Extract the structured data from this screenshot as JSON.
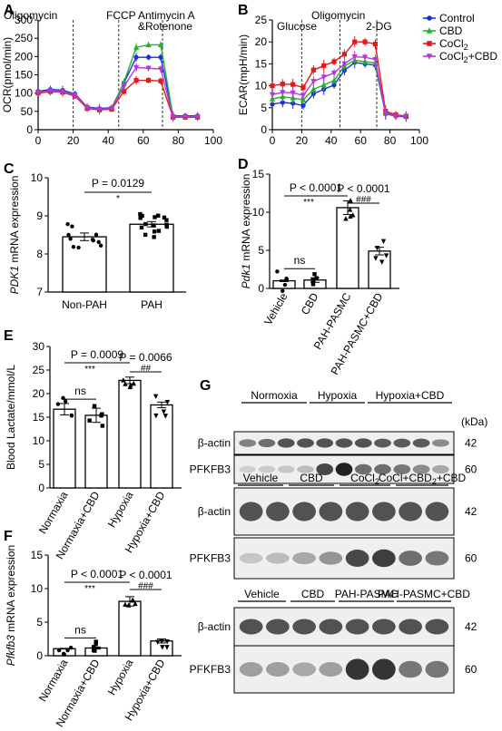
{
  "panels": {
    "A": "A",
    "B": "B",
    "C": "C",
    "D": "D",
    "E": "E",
    "F": "F",
    "G": "G"
  },
  "chart_data": [
    {
      "panel": "A",
      "type": "line",
      "ylabel": "OCR(pmol/min)",
      "xlim": [
        0,
        100
      ],
      "ylim": [
        0,
        300
      ],
      "xticks": [
        0,
        20,
        40,
        60,
        80,
        100
      ],
      "yticks": [
        0,
        50,
        100,
        150,
        200,
        250,
        300
      ],
      "injections": [
        {
          "x": 20,
          "label": "Oligomycin"
        },
        {
          "x": 46,
          "label": "FCCP"
        },
        {
          "x": 71,
          "label": "Antimycin A"
        },
        {
          "x": 71,
          "label": "&Rotenone"
        }
      ],
      "x": [
        0,
        7,
        14,
        21,
        28,
        35,
        42,
        49,
        56,
        63,
        70,
        77,
        84,
        91
      ],
      "series": [
        {
          "name": "Control",
          "color": "#1a2fe0",
          "marker": "circle",
          "values": [
            105,
            110,
            108,
            98,
            62,
            58,
            60,
            128,
            198,
            198,
            198,
            38,
            38,
            38
          ]
        },
        {
          "name": "CBD",
          "color": "#22b22e",
          "marker": "triangle",
          "values": [
            103,
            106,
            104,
            96,
            60,
            56,
            58,
            130,
            225,
            232,
            232,
            36,
            36,
            36
          ]
        },
        {
          "name": "CoCl2",
          "color": "#e01b1b",
          "marker": "square",
          "values": [
            100,
            104,
            102,
            92,
            58,
            54,
            56,
            105,
            135,
            135,
            133,
            34,
            34,
            34
          ]
        },
        {
          "name": "CoCl2+CBD",
          "color": "#b338d8",
          "marker": "triangle-down",
          "values": [
            102,
            106,
            104,
            94,
            60,
            56,
            58,
            118,
            170,
            168,
            166,
            35,
            35,
            35
          ]
        }
      ]
    },
    {
      "panel": "B",
      "type": "line",
      "ylabel": "ECAR(mpH/min)",
      "xlim": [
        0,
        100
      ],
      "ylim": [
        0,
        25
      ],
      "xticks": [
        0,
        20,
        40,
        60,
        80,
        100
      ],
      "yticks": [
        0,
        5,
        10,
        15,
        20,
        25
      ],
      "injections": [
        {
          "x": 20,
          "label": "Glucose"
        },
        {
          "x": 46,
          "label": "Oligomycin"
        },
        {
          "x": 71,
          "label": "2-DG"
        }
      ],
      "x": [
        0,
        7,
        14,
        21,
        28,
        35,
        42,
        49,
        56,
        63,
        70,
        77,
        84,
        91
      ],
      "series": [
        {
          "name": "Control",
          "color": "#1a2fe0",
          "marker": "circle",
          "values": [
            5.8,
            6.2,
            6.0,
            5.5,
            8.2,
            9.2,
            10.2,
            13.5,
            15.3,
            15.0,
            14.7,
            3.6,
            3.1,
            2.9
          ]
        },
        {
          "name": "CBD",
          "color": "#22b22e",
          "marker": "triangle",
          "values": [
            7.0,
            7.5,
            7.2,
            6.8,
            9.2,
            10.2,
            11.2,
            14.5,
            15.8,
            15.5,
            15.2,
            3.8,
            3.3,
            3.1
          ]
        },
        {
          "name": "CoCl2",
          "color": "#e01b1b",
          "marker": "square",
          "values": [
            10.0,
            10.4,
            10.3,
            9.6,
            13.6,
            14.6,
            15.5,
            17.2,
            20.0,
            20.0,
            19.5,
            4.2,
            3.4,
            3.1
          ]
        },
        {
          "name": "CoCl2+CBD",
          "color": "#b338d8",
          "marker": "triangle-down",
          "values": [
            8.0,
            8.5,
            8.4,
            7.8,
            11.0,
            12.0,
            12.9,
            15.0,
            16.6,
            16.5,
            16.0,
            3.8,
            3.1,
            3.1
          ]
        }
      ]
    },
    {
      "panel": "C",
      "type": "bar",
      "ylabel_gene": "PDK1",
      "ylabel_rest": " mRNA expression",
      "categories": [
        "Non-PAH",
        "PAH"
      ],
      "values": [
        8.45,
        8.78
      ],
      "errors": [
        0.1,
        0.07
      ],
      "ylim": [
        7,
        10
      ],
      "yticks": [
        7,
        8,
        9,
        10
      ],
      "comparisons": [
        {
          "from": 0,
          "to": 1,
          "text": "P = 0.0129",
          "stars": "*"
        }
      ]
    },
    {
      "panel": "D",
      "type": "bar",
      "ylabel_gene": "Pdk1",
      "ylabel_rest": " mRNA expression",
      "categories": [
        "Vehicle",
        "CBD",
        "PAH-PASMC",
        "PAH-PASMC+CBD"
      ],
      "values": [
        1.0,
        1.1,
        10.6,
        4.9
      ],
      "errors": [
        0.1,
        0.3,
        0.9,
        0.5
      ],
      "ylim": [
        0,
        15
      ],
      "yticks": [
        0,
        5,
        10,
        15
      ],
      "comparisons": [
        {
          "from": 0,
          "to": 1,
          "text": "ns",
          "stars": ""
        },
        {
          "from": 0,
          "to": 2,
          "text": "P < 0.0001",
          "stars": "***"
        },
        {
          "from": 2,
          "to": 3,
          "text": "P < 0.0001",
          "stars": "###"
        }
      ]
    },
    {
      "panel": "E",
      "type": "bar",
      "ylabel": "Blood Lactate/mmol/L",
      "categories": [
        "Normaxia",
        "Normaxia+CBD",
        "Hypoxia",
        "Hypoxia+CBD"
      ],
      "values": [
        16.7,
        15.4,
        22.8,
        17.6
      ],
      "errors": [
        1.2,
        1.5,
        0.7,
        0.6
      ],
      "ylim": [
        0,
        30
      ],
      "yticks": [
        0,
        5,
        10,
        15,
        20,
        25,
        30
      ],
      "comparisons": [
        {
          "from": 0,
          "to": 1,
          "text": "ns",
          "stars": ""
        },
        {
          "from": 0,
          "to": 2,
          "text": "P = 0.0009",
          "stars": "***"
        },
        {
          "from": 2,
          "to": 3,
          "text": "P = 0.0066",
          "stars": "##"
        }
      ]
    },
    {
      "panel": "F",
      "type": "bar",
      "ylabel_gene": "Pfkfb3",
      "ylabel_rest": " mRNA expression",
      "categories": [
        "Normaxia",
        "Normaxia+CBD",
        "Hypoxia",
        "Hypoxia+CBD"
      ],
      "values": [
        1.05,
        1.15,
        8.1,
        2.2
      ],
      "errors": [
        0.05,
        0.15,
        0.7,
        0.3
      ],
      "ylim": [
        0,
        15
      ],
      "yticks": [
        0,
        5,
        10,
        15
      ],
      "comparisons": [
        {
          "from": 0,
          "to": 1,
          "text": "ns",
          "stars": ""
        },
        {
          "from": 0,
          "to": 2,
          "text": "P < 0.0001",
          "stars": "***"
        },
        {
          "from": 2,
          "to": 3,
          "text": "P < 0.0001",
          "stars": "###"
        }
      ]
    }
  ],
  "legend": [
    {
      "name": "Control",
      "color": "#1a2fe0",
      "marker": "circle"
    },
    {
      "name": "CBD",
      "color": "#22b22e",
      "marker": "triangle"
    },
    {
      "name": "CoCl",
      "sub": "2",
      "tail": "",
      "color": "#e01b1b",
      "marker": "square"
    },
    {
      "name": "CoCl",
      "sub": "2",
      "tail": "+CBD",
      "color": "#b338d8",
      "marker": "triangle-down"
    }
  ],
  "blots": {
    "kda_label": "(kDa)",
    "sets": [
      {
        "groups": [
          "Normoxia",
          "Hypoxia",
          "Hypoxia+CBD"
        ],
        "rows": [
          {
            "label": "β-actin",
            "kda": "42",
            "bands": [
              0.5,
              0.6,
              0.75,
              0.75,
              0.75,
              0.75,
              0.75,
              0.7,
              0.7,
              0.7,
              0.45
            ]
          },
          {
            "label": "PFKFB3",
            "kda": "60",
            "bands": [
              0.1,
              0.12,
              0.15,
              0.2,
              0.8,
              1.0,
              0.6,
              0.6,
              0.55,
              0.45,
              0.3
            ]
          }
        ]
      },
      {
        "groups": [
          "Vehicle",
          "CBD",
          "CoCl",
          "CoCl+CBD"
        ],
        "group_subs": [
          "",
          "",
          "2",
          "2"
        ],
        "group_tails": [
          "",
          "",
          "",
          "+CBD"
        ],
        "rows": [
          {
            "label": "β-actin",
            "kda": "42",
            "bands": [
              0.75,
              0.75,
              0.75,
              0.75,
              0.75,
              0.75,
              0.75,
              0.75
            ]
          },
          {
            "label": "PFKFB3",
            "kda": "60",
            "bands": [
              0.15,
              0.2,
              0.3,
              0.4,
              0.8,
              0.85,
              0.6,
              0.55
            ]
          }
        ]
      },
      {
        "groups": [
          "Vehicle",
          "CBD",
          "PAH-PASMC",
          "PAH-PASMC+CBD"
        ],
        "rows": [
          {
            "label": "β-actin",
            "kda": "42",
            "bands": [
              0.75,
              0.75,
              0.75,
              0.75,
              0.75,
              0.75,
              0.75,
              0.75
            ]
          },
          {
            "label": "PFKFB3",
            "kda": "60",
            "bands": [
              0.35,
              0.35,
              0.3,
              0.35,
              0.9,
              0.9,
              0.55,
              0.55
            ]
          }
        ]
      }
    ]
  }
}
